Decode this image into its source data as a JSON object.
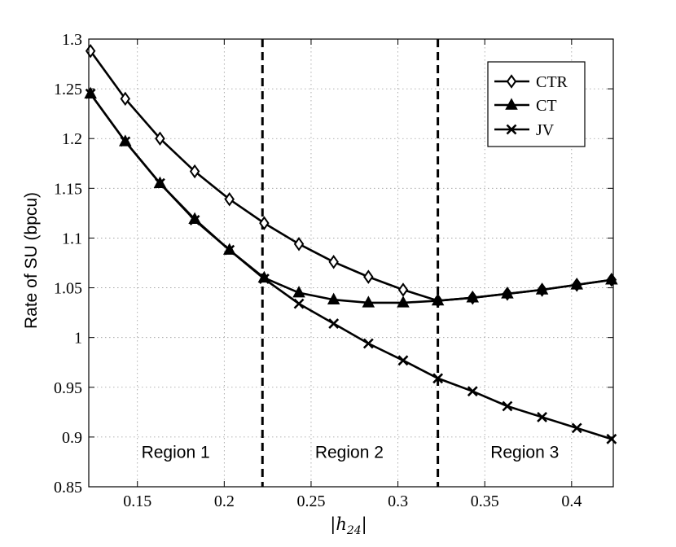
{
  "chart_data": {
    "type": "line",
    "xlabel": "|h24|",
    "xlabel_parts": {
      "bar": "|",
      "var": "h",
      "sub": "24"
    },
    "ylabel": "Rate of SU (bpcu)",
    "xlim": [
      0.122,
      0.424
    ],
    "ylim": [
      0.85,
      1.3
    ],
    "xticks": [
      0.15,
      0.2,
      0.25,
      0.3,
      0.35,
      0.4
    ],
    "xtick_labels": [
      "0.15",
      "0.2",
      "0.25",
      "0.3",
      "0.35",
      "0.4"
    ],
    "yticks": [
      0.85,
      0.9,
      0.95,
      1.0,
      1.05,
      1.1,
      1.15,
      1.2,
      1.25,
      1.3
    ],
    "ytick_labels": [
      "0.85",
      "0.9",
      "0.95",
      "1",
      "1.05",
      "1.1",
      "1.15",
      "1.2",
      "1.25",
      "1.3"
    ],
    "grid": true,
    "legend_position": "top-right",
    "x": [
      0.123,
      0.143,
      0.163,
      0.183,
      0.203,
      0.223,
      0.243,
      0.263,
      0.283,
      0.303,
      0.323,
      0.343,
      0.363,
      0.383,
      0.403,
      0.423
    ],
    "series": [
      {
        "name": "CTR",
        "marker": "diamond",
        "values": [
          1.288,
          1.24,
          1.2,
          1.167,
          1.139,
          1.115,
          1.094,
          1.076,
          1.061,
          1.048,
          1.037,
          1.04,
          1.044,
          1.048,
          1.053,
          1.058
        ]
      },
      {
        "name": "CT",
        "marker": "triangle",
        "values": [
          1.245,
          1.197,
          1.155,
          1.119,
          1.088,
          1.06,
          1.045,
          1.038,
          1.035,
          1.035,
          1.037,
          1.04,
          1.044,
          1.048,
          1.053,
          1.058
        ]
      },
      {
        "name": "JV",
        "marker": "x",
        "values": [
          1.245,
          1.197,
          1.155,
          1.118,
          1.088,
          1.059,
          1.034,
          1.014,
          0.994,
          0.977,
          0.959,
          0.946,
          0.931,
          0.92,
          0.909,
          0.898
        ]
      }
    ],
    "region_boundaries": [
      0.222,
      0.323
    ],
    "regions": [
      {
        "label": "Region 1",
        "x": 0.172,
        "y": 0.879
      },
      {
        "label": "Region 2",
        "x": 0.272,
        "y": 0.879
      },
      {
        "label": "Region 3",
        "x": 0.373,
        "y": 0.879
      }
    ]
  }
}
